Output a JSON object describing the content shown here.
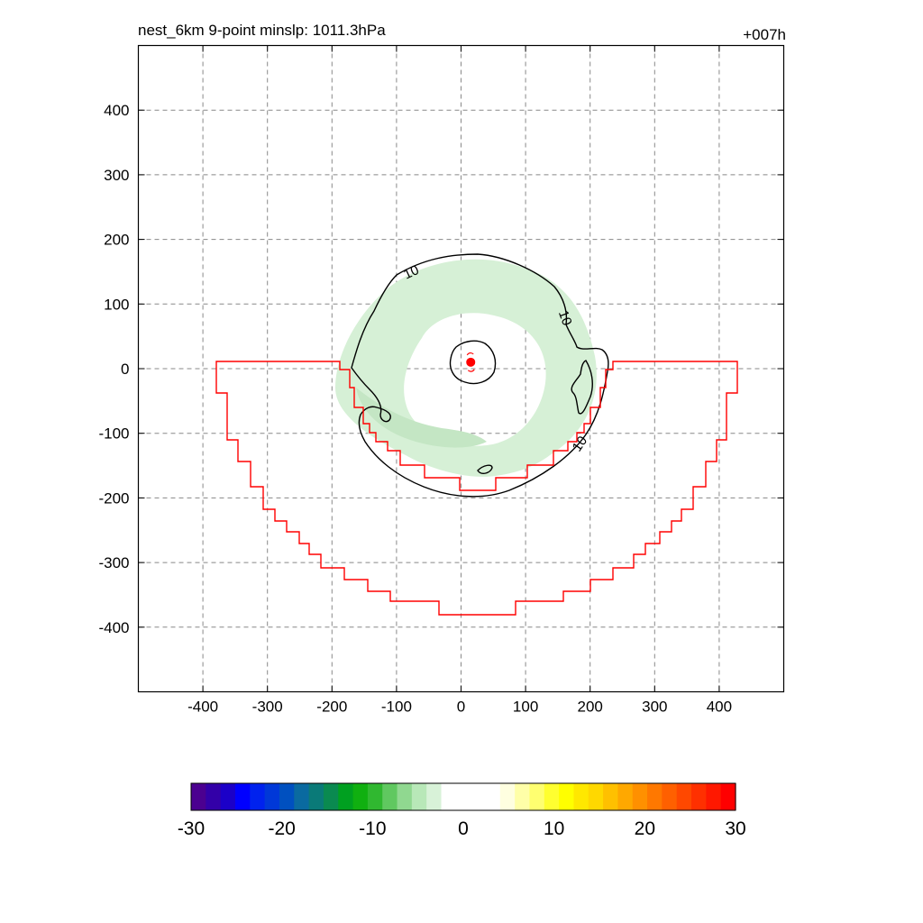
{
  "chart_data": {
    "type": "contour-map",
    "title_left": "nest_6km  9-point minslp: 1011.3hPa",
    "title_right": "+007h",
    "xlim": [
      -500,
      500
    ],
    "ylim": [
      -500,
      500
    ],
    "x_ticks": [
      -400,
      -300,
      -200,
      -100,
      0,
      100,
      200,
      300,
      400
    ],
    "y_ticks": [
      400,
      300,
      200,
      100,
      0,
      -100,
      -200,
      -300,
      -400
    ],
    "grid": true,
    "contour_labels": [
      "10",
      "10",
      "10"
    ],
    "storm_center": [
      15,
      10
    ],
    "colorbar": {
      "ticks": [
        -30,
        -20,
        -10,
        0,
        10,
        20,
        30
      ],
      "colors": [
        "#4b0090",
        "#3300a8",
        "#1b00c8",
        "#0000ff",
        "#0022ee",
        "#0038d8",
        "#0050c0",
        "#0a6aa0",
        "#0a7a78",
        "#0a8a50",
        "#00a020",
        "#10b010",
        "#30b830",
        "#60c860",
        "#90d890",
        "#b8e8b8",
        "#d8f2d8",
        "#ffffff",
        "#ffffff",
        "#ffffff",
        "#ffffff",
        "#ffffe0",
        "#ffffa8",
        "#ffff70",
        "#ffff30",
        "#ffff00",
        "#ffe800",
        "#ffd800",
        "#ffc000",
        "#ffa800",
        "#ff9000",
        "#ff7800",
        "#ff6000",
        "#ff4800",
        "#ff3000",
        "#ff1800",
        "#ff0000"
      ]
    },
    "colors": {
      "contour": "#000000",
      "boundary": "#ff0000",
      "shade_light": "#d6f0d6",
      "shade_mid": "#c4e6c4",
      "grid": "#888888"
    }
  }
}
